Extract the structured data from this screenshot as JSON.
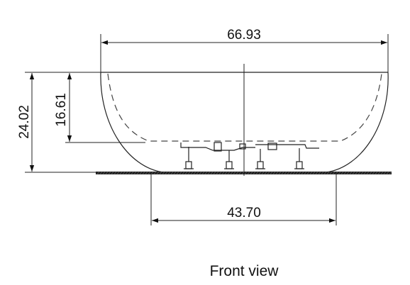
{
  "dimensions": {
    "overall_width": "66.93",
    "base_width": "43.70",
    "overall_height": "24.02",
    "inner_depth": "16.61"
  },
  "caption": "Front view"
}
